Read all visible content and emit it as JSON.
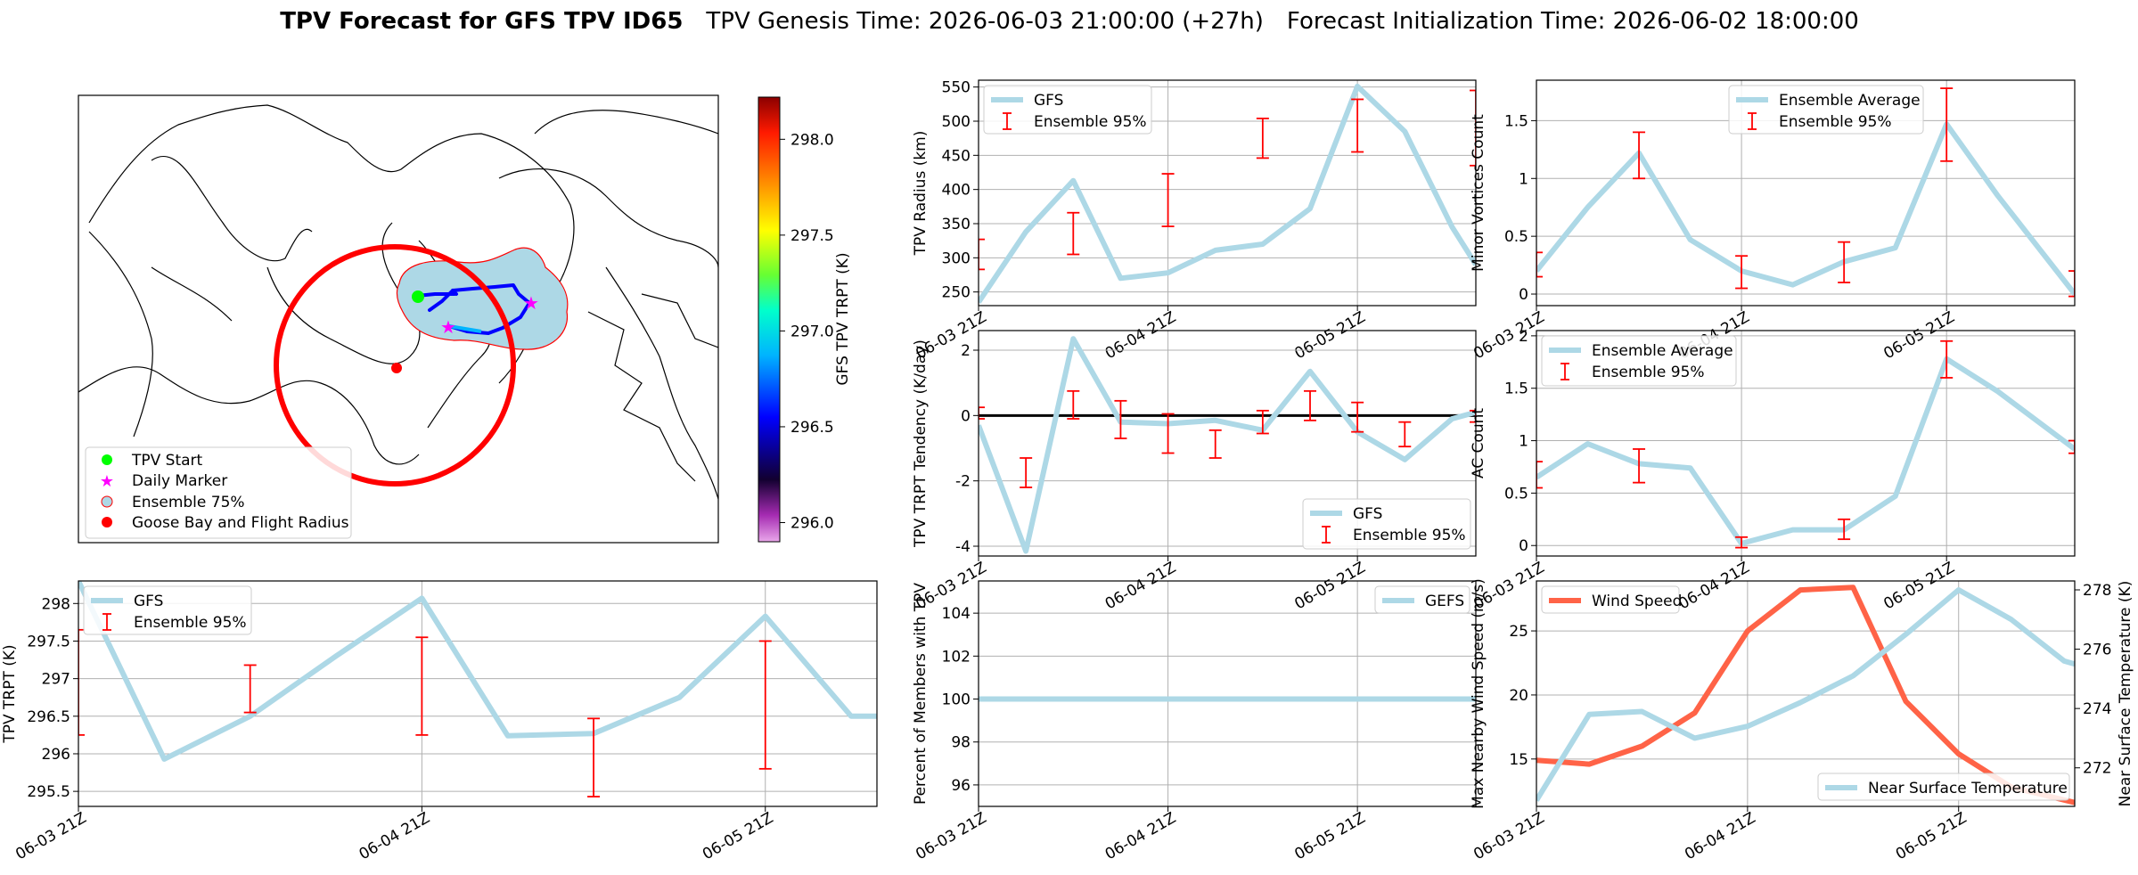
{
  "suptitle": {
    "bold": "TPV Forecast for GFS TPV ID65",
    "genesis": "TPV Genesis Time: 2026-06-03 21:00:00 (+27h)",
    "init": "Forecast Initialization Time: 2026-06-02 18:00:00"
  },
  "colors": {
    "gfs_line": "#add8e6",
    "error_bar": "#ff0000",
    "wind_line": "#ff6347",
    "temp_axis": "#4169e1",
    "flight_circle": "#ff0000",
    "start_marker": "#00ff00",
    "daily_marker": "#ff00ff"
  },
  "map": {
    "colorbar_label": "GFS TPV TRPT (K)",
    "colorbar_ticks": [
      "296.0",
      "296.5",
      "297.0",
      "297.5",
      "298.0"
    ],
    "colorbar_range": [
      295.9,
      298.22
    ],
    "legend": [
      "TPV Start",
      "Daily Marker",
      "Ensemble 75%",
      "Goose Bay and Flight Radius"
    ]
  },
  "chart_data": [
    {
      "id": "radius",
      "type": "line",
      "ylabel": "TPV Radius (km)",
      "xlim": [
        0,
        10.5
      ],
      "ylim": [
        230,
        560
      ],
      "yticks": [
        250,
        300,
        350,
        400,
        450,
        500,
        550
      ],
      "xticks": [
        {
          "x": 0,
          "label": "06-03 21Z"
        },
        {
          "x": 4,
          "label": "06-04 21Z"
        },
        {
          "x": 8,
          "label": "06-05 21Z"
        }
      ],
      "series": [
        {
          "name": "GFS",
          "x": [
            0,
            1,
            2,
            3,
            4,
            5,
            6,
            7,
            8,
            9,
            10,
            10.5
          ],
          "y": [
            235,
            338,
            413,
            270,
            278,
            311,
            320,
            372,
            551,
            485,
            345,
            290
          ]
        }
      ],
      "errorbars": {
        "name": "Ensemble 95%",
        "x": [
          0,
          2,
          4,
          6,
          8,
          10.5
        ],
        "low": [
          283,
          305,
          346,
          446,
          455,
          435
        ],
        "high": [
          327,
          366,
          423,
          504,
          532,
          545
        ]
      }
    },
    {
      "id": "tendency",
      "type": "line",
      "ylabel": "TPV TRPT Tendency (K/day)",
      "xlim": [
        0,
        10.5
      ],
      "ylim": [
        -4.3,
        2.6
      ],
      "yticks": [
        -4,
        -2,
        0,
        2
      ],
      "zero_line": true,
      "xticks": [
        {
          "x": 0,
          "label": "06-03 21Z"
        },
        {
          "x": 4,
          "label": "06-04 21Z"
        },
        {
          "x": 8,
          "label": "06-05 21Z"
        }
      ],
      "series": [
        {
          "name": "GFS",
          "x": [
            0,
            1,
            2,
            3,
            4,
            5,
            6,
            7,
            8,
            9,
            10,
            10.5
          ],
          "y": [
            -0.3,
            -4.15,
            2.35,
            -0.2,
            -0.25,
            -0.15,
            -0.45,
            1.35,
            -0.5,
            -1.35,
            -0.1,
            0.1
          ]
        }
      ],
      "errorbars": {
        "name": "Ensemble 95%",
        "x": [
          0,
          1,
          2,
          3,
          4,
          5,
          6,
          7,
          8,
          9,
          10.5
        ],
        "low": [
          -0.1,
          -2.2,
          -0.1,
          -0.7,
          -1.15,
          -1.3,
          -0.55,
          -0.15,
          -0.5,
          -0.95,
          -0.2
        ],
        "high": [
          0.25,
          -1.3,
          0.75,
          0.45,
          0.05,
          -0.45,
          0.15,
          0.75,
          0.4,
          -0.2,
          0.15
        ]
      }
    },
    {
      "id": "trpt",
      "type": "line",
      "ylabel": "TPV TRPT (K)",
      "xlim": [
        0,
        9.3
      ],
      "ylim": [
        295.3,
        298.3
      ],
      "yticks": [
        295.5,
        296.0,
        296.5,
        297.0,
        297.5,
        298.0
      ],
      "xticks": [
        {
          "x": 0,
          "label": "06-03 21Z"
        },
        {
          "x": 4,
          "label": "06-04 21Z"
        },
        {
          "x": 8,
          "label": "06-05 21Z"
        }
      ],
      "series": [
        {
          "name": "GFS",
          "x": [
            0,
            1,
            2,
            3,
            4,
            5,
            6,
            7,
            8,
            9,
            9.3
          ],
          "y": [
            298.3,
            295.93,
            296.5,
            297.3,
            298.07,
            296.24,
            296.27,
            296.75,
            297.83,
            296.5,
            296.5
          ]
        }
      ],
      "errorbars": {
        "name": "Ensemble 95%",
        "x": [
          0,
          2,
          4,
          6,
          8,
          10
        ],
        "low": [
          296.25,
          296.55,
          296.25,
          295.43,
          295.8,
          295.95
        ],
        "high": [
          297.65,
          297.18,
          297.55,
          296.47,
          297.5,
          297.85
        ]
      }
    },
    {
      "id": "minor",
      "type": "line",
      "ylabel": "Minor Vortices Count",
      "xlim": [
        0,
        10.5
      ],
      "ylim": [
        -0.1,
        1.85
      ],
      "yticks": [
        0.0,
        0.5,
        1.0,
        1.5
      ],
      "xticks": [
        {
          "x": 0,
          "label": "06-03 21Z"
        },
        {
          "x": 4,
          "label": "06-04 21Z"
        },
        {
          "x": 8,
          "label": "06-05 21Z"
        }
      ],
      "series": [
        {
          "name": "Ensemble Average",
          "x": [
            0,
            1,
            2,
            3,
            4,
            5,
            6,
            7,
            8,
            9,
            10.5
          ],
          "y": [
            0.2,
            0.75,
            1.22,
            0.47,
            0.2,
            0.08,
            0.28,
            0.4,
            1.47,
            0.85,
            0.0
          ]
        }
      ],
      "errorbars": {
        "name": "Ensemble 95%",
        "x": [
          0,
          2,
          4,
          6,
          8,
          10.5
        ],
        "low": [
          0.15,
          1.0,
          0.05,
          0.1,
          1.15,
          -0.02
        ],
        "high": [
          0.36,
          1.4,
          0.33,
          0.45,
          1.78,
          0.2
        ]
      }
    },
    {
      "id": "ac",
      "type": "line",
      "ylabel": "AC Count",
      "xlim": [
        0,
        10.5
      ],
      "ylim": [
        -0.1,
        2.05
      ],
      "yticks": [
        0.0,
        0.5,
        1.0,
        1.5,
        2.0
      ],
      "xticks": [
        {
          "x": 0,
          "label": "06-03 21Z"
        },
        {
          "x": 4,
          "label": "06-04 21Z"
        },
        {
          "x": 8,
          "label": "06-05 21Z"
        }
      ],
      "series": [
        {
          "name": "Ensemble Average",
          "x": [
            0,
            1,
            2,
            3,
            4,
            5,
            6,
            7,
            8,
            9,
            10.5
          ],
          "y": [
            0.65,
            0.97,
            0.78,
            0.74,
            0.02,
            0.15,
            0.15,
            0.47,
            1.78,
            1.47,
            0.92
          ]
        }
      ],
      "errorbars": {
        "name": "Ensemble 95%",
        "x": [
          0,
          2,
          4,
          6,
          8,
          10.5
        ],
        "low": [
          0.55,
          0.6,
          -0.02,
          0.06,
          1.6,
          0.88
        ],
        "high": [
          0.8,
          0.92,
          0.08,
          0.25,
          1.95,
          1.0
        ]
      }
    },
    {
      "id": "percent",
      "type": "line",
      "ylabel": "Percent of Members with TPV",
      "xlim": [
        0,
        10.5
      ],
      "ylim": [
        95,
        105.5
      ],
      "yticks": [
        96,
        98,
        100,
        102,
        104
      ],
      "xticks": [
        {
          "x": 0,
          "label": "06-03 21Z"
        },
        {
          "x": 4,
          "label": "06-04 21Z"
        },
        {
          "x": 8,
          "label": "06-05 21Z"
        }
      ],
      "series": [
        {
          "name": "GEFS",
          "x": [
            0,
            10.5
          ],
          "y": [
            100,
            100
          ]
        }
      ]
    },
    {
      "id": "wind",
      "type": "line",
      "ylabel": "Max Nearby Wind Speed (m/s)",
      "ylabel_right": "Near Surface Temperature (K)",
      "xlim": [
        0,
        10.2
      ],
      "ylim": [
        11.3,
        28.9
      ],
      "yticks": [
        15,
        20,
        25
      ],
      "ylim_right": [
        270.7,
        278.3
      ],
      "yticks_right": [
        272,
        274,
        276,
        278
      ],
      "xticks": [
        {
          "x": 0,
          "label": "06-03 21Z"
        },
        {
          "x": 4,
          "label": "06-04 21Z"
        },
        {
          "x": 8,
          "label": "06-05 21Z"
        }
      ],
      "series": [
        {
          "name": "Wind Speed",
          "axis": "left",
          "x": [
            0,
            1,
            2,
            3,
            4,
            5,
            6,
            7,
            8,
            9,
            10,
            10.2
          ],
          "y": [
            14.9,
            14.6,
            16.0,
            18.6,
            25.0,
            28.2,
            28.4,
            19.5,
            15.4,
            12.8,
            11.8,
            11.6
          ]
        },
        {
          "name": "Near Surface Temperature",
          "axis": "right",
          "x": [
            0,
            1,
            2,
            3,
            4,
            5,
            6,
            7,
            8,
            9,
            10,
            10.2
          ],
          "y": [
            270.9,
            273.8,
            273.9,
            273.0,
            273.4,
            274.2,
            275.1,
            276.5,
            278.0,
            277.0,
            275.6,
            275.5
          ]
        }
      ]
    }
  ]
}
